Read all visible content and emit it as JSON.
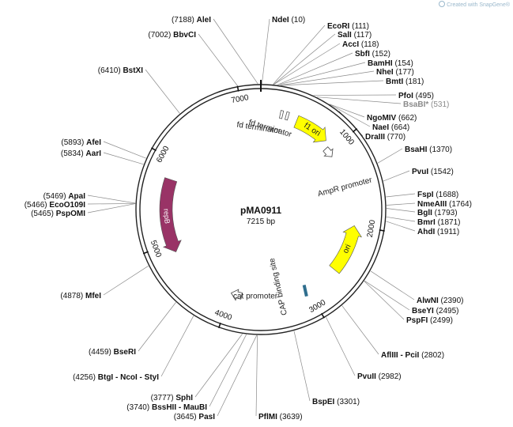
{
  "watermark": {
    "text": "Created with SnapGene®"
  },
  "plasmid": {
    "name": "pMA0911",
    "length_label": "7215 bp",
    "length": 7215
  },
  "ticks": [
    {
      "pos": 1000,
      "label": "1000"
    },
    {
      "pos": 2000,
      "label": "2000"
    },
    {
      "pos": 3000,
      "label": "3000"
    },
    {
      "pos": 4000,
      "label": "4000"
    },
    {
      "pos": 5000,
      "label": "5000"
    },
    {
      "pos": 6000,
      "label": "6000"
    },
    {
      "pos": 7000,
      "label": "7000"
    }
  ],
  "features": [
    {
      "name": "f1 ori",
      "start": 440,
      "end": 870,
      "kind": "arrow",
      "dir": "cw",
      "color": "#ffff00",
      "label_inside": true
    },
    {
      "name": "ori",
      "start": 2000,
      "end": 2590,
      "kind": "arrow",
      "dir": "ccw",
      "color": "#ffff00",
      "label_inside": true
    },
    {
      "name": "repB",
      "start": 4880,
      "end": 5780,
      "kind": "arrow",
      "dir": "ccw",
      "color": "#993366",
      "label_inside": true
    },
    {
      "name": "AmpR promoter",
      "start": 940,
      "end": 1030,
      "kind": "promoter",
      "dir": "cw",
      "color": "#ffffff",
      "label_inside": false
    },
    {
      "name": "cat promoter",
      "start": 3860,
      "end": 3960,
      "kind": "promoter",
      "dir": "cw",
      "color": "#ffffff",
      "label_inside": false
    },
    {
      "name": "CAP binding site",
      "start": 3010,
      "end": 3050,
      "kind": "site",
      "dir": "none",
      "color": "#2f6e8e",
      "label_inside": false
    },
    {
      "name": "fd terminator",
      "start": 230,
      "end": 260,
      "kind": "terminator",
      "dir": "none",
      "color": "#ffffff",
      "label_inside": false
    },
    {
      "name": "fd terminator",
      "start": 300,
      "end": 330,
      "kind": "terminator",
      "dir": "none",
      "color": "#ffffff",
      "label_inside": false
    }
  ],
  "sites": [
    {
      "name": "AleI",
      "pos": "7188",
      "at": 7188,
      "dim": false
    },
    {
      "name": "BbvCI",
      "pos": "7002",
      "at": 7002,
      "dim": false
    },
    {
      "name": "BstXI",
      "pos": "6410",
      "at": 6410,
      "dim": false
    },
    {
      "name": "AfeI",
      "pos": "5893",
      "at": 5893,
      "dim": false
    },
    {
      "name": "AarI",
      "pos": "5834",
      "at": 5834,
      "dim": false
    },
    {
      "name": "ApaI",
      "pos": "5469",
      "at": 5469,
      "dim": false
    },
    {
      "name": "EcoO109I",
      "pos": "5466",
      "at": 5466,
      "dim": false
    },
    {
      "name": "PspOMI",
      "pos": "5465",
      "at": 5465,
      "dim": false
    },
    {
      "name": "MfeI",
      "pos": "4878",
      "at": 4878,
      "dim": false
    },
    {
      "name": "BseRI",
      "pos": "4459",
      "at": 4459,
      "dim": false
    },
    {
      "name": "BtgI - NcoI - StyI",
      "pos": "4256",
      "at": 4256,
      "dim": false
    },
    {
      "name": "SphI",
      "pos": "3777",
      "at": 3777,
      "dim": false
    },
    {
      "name": "BssHII - MauBI",
      "pos": "3740",
      "at": 3740,
      "dim": false
    },
    {
      "name": "PasI",
      "pos": "3645",
      "at": 3645,
      "dim": false
    },
    {
      "name": "PflMI",
      "pos": "3639",
      "at": 3639,
      "dim": false
    },
    {
      "name": "BspEI",
      "pos": "3301",
      "at": 3301,
      "dim": false
    },
    {
      "name": "PvuII",
      "pos": "2982",
      "at": 2982,
      "dim": false
    },
    {
      "name": "AflIII - PciI",
      "pos": "2802",
      "at": 2802,
      "dim": false
    },
    {
      "name": "PspFI",
      "pos": "2499",
      "at": 2499,
      "dim": false
    },
    {
      "name": "BseYI",
      "pos": "2495",
      "at": 2495,
      "dim": false
    },
    {
      "name": "AlwNI",
      "pos": "2390",
      "at": 2390,
      "dim": false
    },
    {
      "name": "AhdI",
      "pos": "1911",
      "at": 1911,
      "dim": false
    },
    {
      "name": "BmrI",
      "pos": "1871",
      "at": 1871,
      "dim": false
    },
    {
      "name": "BglI",
      "pos": "1793",
      "at": 1793,
      "dim": false
    },
    {
      "name": "NmeAIII",
      "pos": "1764",
      "at": 1764,
      "dim": false
    },
    {
      "name": "FspI",
      "pos": "1688",
      "at": 1688,
      "dim": false
    },
    {
      "name": "PvuI",
      "pos": "1542",
      "at": 1542,
      "dim": false
    },
    {
      "name": "BsaHI",
      "pos": "1370",
      "at": 1370,
      "dim": false
    },
    {
      "name": "DraIII",
      "pos": "770",
      "at": 770,
      "dim": false
    },
    {
      "name": "NaeI",
      "pos": "664",
      "at": 664,
      "dim": false
    },
    {
      "name": "NgoMIV",
      "pos": "662",
      "at": 662,
      "dim": false
    },
    {
      "name": "BsaBI*",
      "pos": "531",
      "at": 531,
      "dim": true
    },
    {
      "name": "PfoI",
      "pos": "495",
      "at": 495,
      "dim": false
    },
    {
      "name": "BmtI",
      "pos": "181",
      "at": 181,
      "dim": false
    },
    {
      "name": "NheI",
      "pos": "177",
      "at": 177,
      "dim": false
    },
    {
      "name": "BamHI",
      "pos": "154",
      "at": 154,
      "dim": false
    },
    {
      "name": "SbfI",
      "pos": "152",
      "at": 152,
      "dim": false
    },
    {
      "name": "AccI",
      "pos": "118",
      "at": 118,
      "dim": false
    },
    {
      "name": "SalI",
      "pos": "117",
      "at": 117,
      "dim": false
    },
    {
      "name": "EcoRI",
      "pos": "111",
      "at": 111,
      "dim": false
    },
    {
      "name": "NdeI",
      "pos": "10",
      "at": 10,
      "dim": false
    }
  ]
}
